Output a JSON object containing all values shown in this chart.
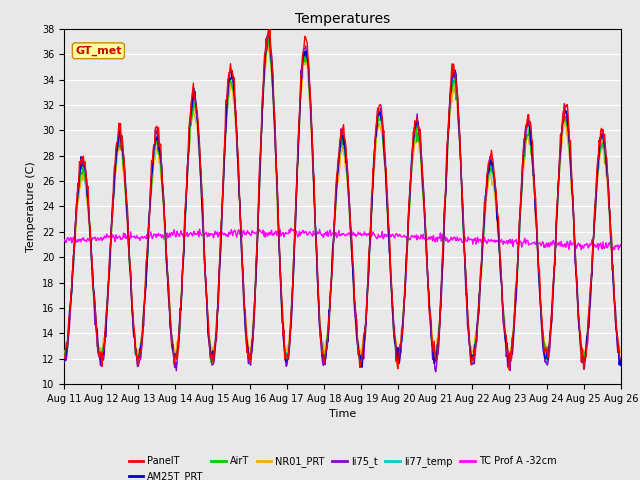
{
  "title": "Temperatures",
  "xlabel": "Time",
  "ylabel": "Temperature (C)",
  "ylim": [
    10,
    38
  ],
  "xlim_days": [
    0,
    15
  ],
  "x_tick_labels": [
    "Aug 11",
    "Aug 12",
    "Aug 13",
    "Aug 14",
    "Aug 15",
    "Aug 16",
    "Aug 17",
    "Aug 18",
    "Aug 19",
    "Aug 20",
    "Aug 21",
    "Aug 22",
    "Aug 23",
    "Aug 24",
    "Aug 25",
    "Aug 26"
  ],
  "yticks": [
    10,
    12,
    14,
    16,
    18,
    20,
    22,
    24,
    26,
    28,
    30,
    32,
    34,
    36,
    38
  ],
  "series": {
    "PanelT": {
      "color": "#ff0000",
      "lw": 1.0
    },
    "AM25T_PRT": {
      "color": "#0000cc",
      "lw": 1.0
    },
    "AirT": {
      "color": "#00cc00",
      "lw": 1.0
    },
    "NR01_PRT": {
      "color": "#ffaa00",
      "lw": 1.0
    },
    "li75_t": {
      "color": "#8800cc",
      "lw": 1.0
    },
    "li77_temp": {
      "color": "#00cccc",
      "lw": 1.0
    },
    "TC Prof A -32cm": {
      "color": "#ff00ff",
      "lw": 1.0
    }
  },
  "annotation_text": "GT_met",
  "fig_bg_color": "#e8e8e8",
  "plot_bg_color": "#e8e8e8",
  "grid_color": "#ffffff",
  "legend_row1": [
    "PanelT",
    "AM25T_PRT",
    "AirT",
    "NR01_PRT",
    "li75_t",
    "li77_temp"
  ],
  "legend_row2": [
    "TC Prof A -32cm"
  ]
}
